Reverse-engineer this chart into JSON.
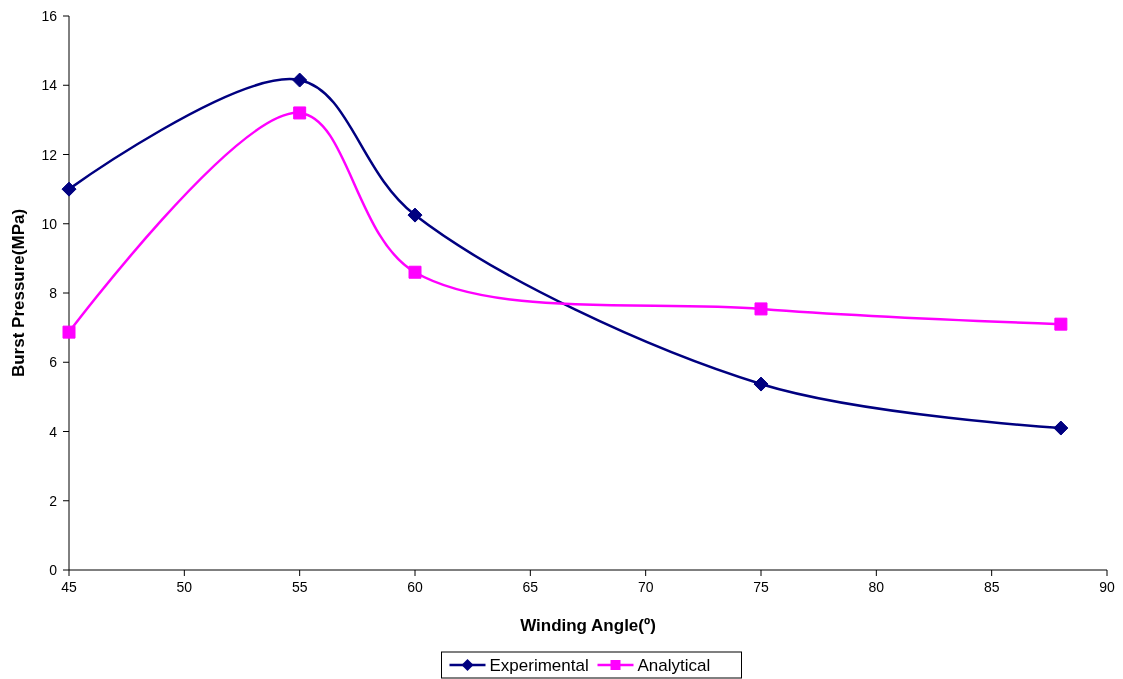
{
  "chart_data": {
    "type": "line",
    "xlabel": "Winding Angle(º)",
    "ylabel": "Burst Pressure(MPa)",
    "xlim": [
      45,
      90
    ],
    "xticks": [
      45,
      50,
      55,
      60,
      65,
      70,
      75,
      80,
      85,
      90
    ],
    "ylim": [
      0,
      16
    ],
    "yticks": [
      0,
      2,
      4,
      6,
      8,
      10,
      12,
      14,
      16
    ],
    "grid": false,
    "legend": "bottom",
    "series": [
      {
        "name": "Experimental",
        "color": "#000080",
        "marker": "diamond",
        "x": [
          45,
          55,
          60,
          75,
          88
        ],
        "values": [
          11.0,
          14.15,
          10.25,
          5.37,
          4.1
        ]
      },
      {
        "name": "Analytical",
        "color": "#ff00ff",
        "marker": "square",
        "x": [
          45,
          55,
          60,
          75,
          88
        ],
        "values": [
          6.87,
          13.2,
          8.6,
          7.54,
          7.1
        ]
      }
    ]
  }
}
